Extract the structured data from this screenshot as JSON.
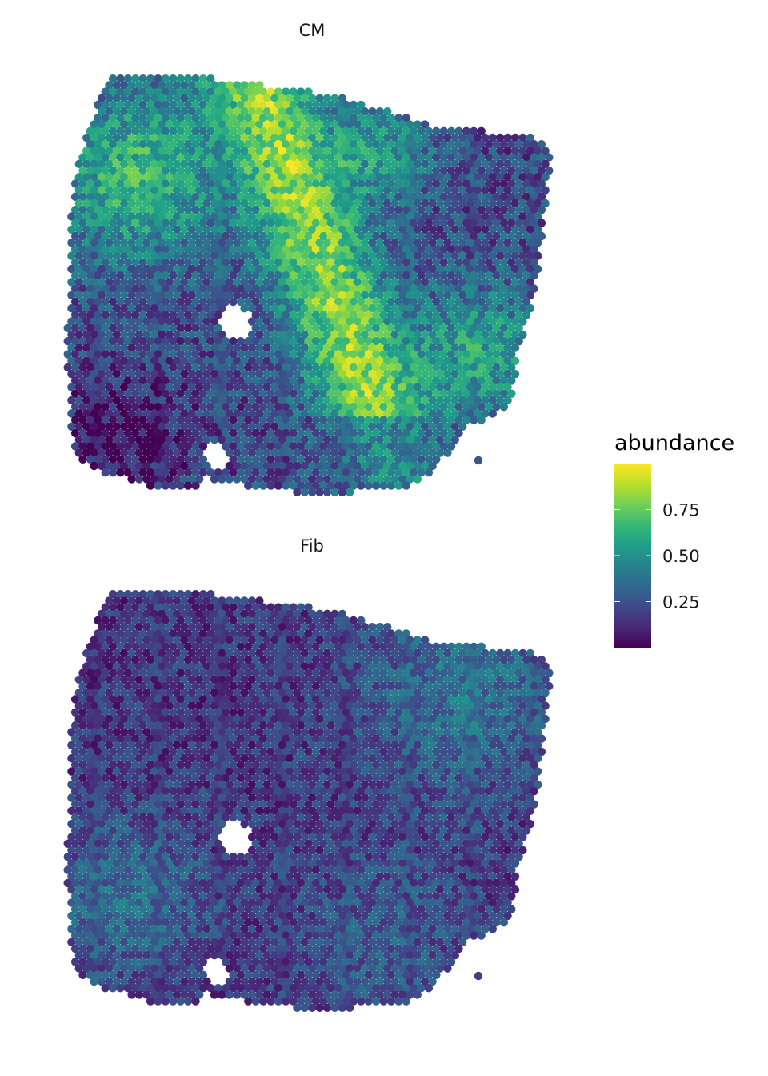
{
  "chart_data": {
    "type": "heatmap",
    "subtype": "spatial-spot-map",
    "description_of_encoding": "viridis color scale",
    "panels": [
      {
        "title": "CM",
        "values": "dense grid of spots; high (0.6-0.9) abundance band running diagonally through the center and in upper-left, low (0.0-0.3) in lower-left and right regions"
      },
      {
        "title": "Fib",
        "values": "dense grid of spots; mostly low (0.0-0.3) abundance, moderate (0.3-0.5) on the right side and lower-left"
      }
    ],
    "legend": {
      "title": "abundance",
      "ticks": [
        "0.25",
        "0.50",
        "0.75"
      ],
      "tick_values": [
        0.25,
        0.5,
        0.75
      ],
      "range": [
        0.0,
        1.0
      ],
      "colormap": "viridis",
      "placement": "right"
    }
  },
  "colors": {
    "viridis": [
      "#440154",
      "#482878",
      "#3e4989",
      "#31688e",
      "#26828e",
      "#1f9e89",
      "#35b779",
      "#6ece58",
      "#b5de2b",
      "#fde725"
    ]
  }
}
